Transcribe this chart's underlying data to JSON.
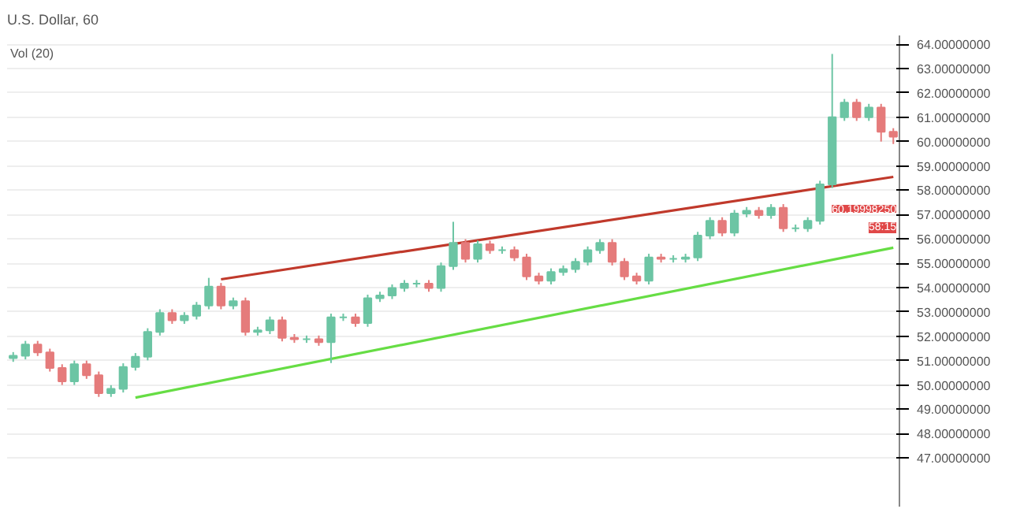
{
  "chart_data": {
    "type": "candlestick",
    "title": "U.S. Dollar, 60",
    "categories": [
      null,
      null,
      null,
      null,
      null,
      null,
      null,
      null,
      null,
      null,
      null,
      null,
      null,
      null,
      null,
      null,
      null,
      null,
      null,
      null,
      null,
      null,
      null,
      null,
      null,
      null,
      null,
      null,
      null,
      null,
      null,
      null,
      null,
      null,
      null,
      null,
      null,
      null,
      null,
      null,
      null,
      null,
      null,
      null,
      null,
      null,
      null,
      null,
      null,
      null,
      null,
      null,
      null,
      null,
      null,
      null,
      null,
      null,
      null,
      null,
      null,
      null,
      null,
      null,
      null,
      null,
      null,
      null,
      null,
      null,
      null,
      null,
      null
    ],
    "ohlc": [
      [
        51.1,
        51.35,
        50.95,
        51.2
      ],
      [
        51.2,
        51.81,
        51.05,
        51.66
      ],
      [
        51.66,
        51.81,
        51.19,
        51.34
      ],
      [
        51.34,
        51.49,
        50.55,
        50.7
      ],
      [
        50.7,
        50.85,
        50.0,
        50.15
      ],
      [
        50.15,
        51.0,
        50.0,
        50.85
      ],
      [
        50.85,
        51.0,
        50.25,
        50.4
      ],
      [
        50.4,
        50.55,
        49.51,
        49.66
      ],
      [
        49.66,
        49.99,
        49.51,
        49.84
      ],
      [
        49.84,
        50.89,
        49.69,
        50.74
      ],
      [
        50.74,
        51.31,
        50.59,
        51.16
      ],
      [
        51.16,
        52.33,
        51.01,
        52.18
      ],
      [
        52.18,
        53.11,
        52.03,
        52.96
      ],
      [
        52.96,
        53.11,
        52.51,
        52.66
      ],
      [
        52.66,
        52.99,
        52.51,
        52.84
      ],
      [
        52.84,
        53.41,
        52.69,
        53.26
      ],
      [
        53.26,
        54.4,
        53.11,
        54.04
      ],
      [
        54.04,
        54.19,
        53.11,
        53.26
      ],
      [
        53.26,
        53.59,
        53.11,
        53.44
      ],
      [
        53.44,
        53.59,
        52.03,
        52.18
      ],
      [
        52.18,
        52.39,
        52.03,
        52.24
      ],
      [
        52.24,
        52.81,
        52.09,
        52.66
      ],
      [
        52.66,
        52.81,
        51.79,
        51.94
      ],
      [
        51.94,
        52.09,
        51.73,
        51.88
      ],
      [
        51.88,
        52.03,
        51.73,
        51.88
      ],
      [
        51.88,
        52.03,
        51.61,
        51.76
      ],
      [
        51.76,
        52.93,
        50.9,
        52.78
      ],
      [
        52.78,
        52.93,
        52.63,
        52.78
      ],
      [
        52.78,
        52.93,
        52.39,
        52.54
      ],
      [
        52.54,
        53.71,
        52.39,
        53.56
      ],
      [
        53.56,
        53.83,
        53.41,
        53.68
      ],
      [
        53.68,
        54.13,
        53.53,
        53.98
      ],
      [
        53.98,
        54.31,
        53.83,
        54.16
      ],
      [
        54.16,
        54.31,
        54.01,
        54.16
      ],
      [
        54.16,
        54.31,
        53.83,
        53.98
      ],
      [
        53.98,
        55.03,
        53.83,
        54.88
      ],
      [
        54.88,
        56.7,
        54.73,
        55.84
      ],
      [
        55.84,
        55.99,
        55.03,
        55.18
      ],
      [
        55.18,
        55.93,
        55.03,
        55.78
      ],
      [
        55.78,
        55.93,
        55.39,
        55.54
      ],
      [
        55.54,
        55.69,
        55.39,
        55.54
      ],
      [
        55.54,
        55.69,
        55.09,
        55.24
      ],
      [
        55.24,
        55.39,
        54.31,
        54.46
      ],
      [
        54.46,
        54.61,
        54.13,
        54.28
      ],
      [
        54.28,
        54.79,
        54.13,
        54.64
      ],
      [
        54.64,
        54.91,
        54.49,
        54.76
      ],
      [
        54.76,
        55.21,
        54.61,
        55.06
      ],
      [
        55.06,
        55.69,
        54.91,
        55.54
      ],
      [
        55.54,
        55.99,
        55.39,
        55.84
      ],
      [
        55.84,
        55.99,
        54.91,
        55.06
      ],
      [
        55.06,
        55.21,
        54.31,
        54.46
      ],
      [
        54.46,
        54.61,
        54.13,
        54.28
      ],
      [
        54.28,
        55.39,
        54.13,
        55.24
      ],
      [
        55.24,
        55.39,
        55.03,
        55.18
      ],
      [
        55.18,
        55.33,
        55.03,
        55.18
      ],
      [
        55.18,
        55.39,
        55.03,
        55.24
      ],
      [
        55.24,
        56.29,
        55.09,
        56.14
      ],
      [
        56.14,
        56.89,
        55.99,
        56.74
      ],
      [
        56.74,
        56.89,
        56.11,
        56.26
      ],
      [
        56.26,
        57.19,
        56.11,
        57.04
      ],
      [
        57.04,
        57.31,
        56.89,
        57.16
      ],
      [
        57.16,
        57.31,
        56.83,
        56.98
      ],
      [
        56.98,
        57.43,
        56.83,
        57.28
      ],
      [
        57.28,
        57.43,
        56.29,
        56.44
      ],
      [
        56.44,
        56.59,
        56.29,
        56.44
      ],
      [
        56.44,
        56.89,
        56.29,
        56.74
      ],
      [
        56.74,
        58.39,
        56.59,
        58.24
      ],
      [
        58.24,
        63.6,
        58.09,
        61.0
      ],
      [
        61.0,
        61.75,
        60.85,
        61.6
      ],
      [
        61.6,
        61.75,
        60.85,
        61.0
      ],
      [
        61.0,
        61.55,
        60.85,
        61.4
      ],
      [
        61.4,
        61.55,
        60.0,
        60.4
      ],
      [
        60.4,
        60.55,
        59.9,
        60.2
      ]
    ],
    "colors": [
      "#6cc5a4",
      "#6cc5a4",
      "#e57b7b",
      "#e57b7b",
      "#e57b7b",
      "#6cc5a4",
      "#e57b7b",
      "#e57b7b",
      "#6cc5a4",
      "#6cc5a4",
      "#6cc5a4",
      "#6cc5a4",
      "#6cc5a4",
      "#e57b7b",
      "#6cc5a4",
      "#6cc5a4",
      "#6cc5a4",
      "#e57b7b",
      "#6cc5a4",
      "#e57b7b",
      "#6cc5a4",
      "#6cc5a4",
      "#e57b7b",
      "#e57b7b",
      "#6cc5a4",
      "#e57b7b",
      "#6cc5a4",
      "#6cc5a4",
      "#e57b7b",
      "#6cc5a4",
      "#6cc5a4",
      "#6cc5a4",
      "#6cc5a4",
      "#6cc5a4",
      "#e57b7b",
      "#6cc5a4",
      "#6cc5a4",
      "#e57b7b",
      "#6cc5a4",
      "#e57b7b",
      "#6cc5a4",
      "#e57b7b",
      "#e57b7b",
      "#e57b7b",
      "#6cc5a4",
      "#6cc5a4",
      "#6cc5a4",
      "#6cc5a4",
      "#6cc5a4",
      "#e57b7b",
      "#e57b7b",
      "#e57b7b",
      "#6cc5a4",
      "#e57b7b",
      "#6cc5a4",
      "#6cc5a4",
      "#6cc5a4",
      "#6cc5a4",
      "#e57b7b",
      "#6cc5a4",
      "#6cc5a4",
      "#e57b7b",
      "#6cc5a4",
      "#e57b7b",
      "#6cc5a4",
      "#6cc5a4",
      "#6cc5a4",
      "#6cc5a4",
      "#6cc5a4",
      "#e57b7b",
      "#6cc5a4",
      "#e57b7b",
      "#e57b7b"
    ],
    "series": [
      {
        "type": "line",
        "color": "#c0392b",
        "values": [
          null,
          null,
          null,
          null,
          null,
          null,
          null,
          null,
          null,
          null,
          null,
          null,
          null,
          null,
          null,
          null,
          null,
          54.34,
          null,
          null,
          null,
          null,
          null,
          null,
          null,
          null,
          null,
          null,
          null,
          null,
          null,
          null,
          null,
          null,
          null,
          null,
          null,
          null,
          null,
          null,
          null,
          null,
          null,
          null,
          null,
          null,
          null,
          null,
          null,
          null,
          null,
          null,
          null,
          null,
          null,
          null,
          null,
          null,
          null,
          null,
          null,
          null,
          null,
          null,
          null,
          null,
          null,
          null,
          null,
          null,
          null,
          null,
          58.55
        ]
      },
      {
        "type": "line",
        "color": "#66dd44",
        "values": [
          null,
          null,
          null,
          null,
          null,
          null,
          null,
          null,
          null,
          null,
          49.48,
          null,
          null,
          null,
          null,
          null,
          null,
          null,
          null,
          null,
          null,
          null,
          null,
          null,
          null,
          null,
          null,
          null,
          null,
          null,
          null,
          null,
          null,
          null,
          null,
          null,
          null,
          null,
          null,
          null,
          null,
          null,
          null,
          null,
          null,
          null,
          null,
          null,
          null,
          null,
          null,
          null,
          null,
          null,
          null,
          null,
          null,
          null,
          null,
          null,
          null,
          null,
          null,
          null,
          null,
          null,
          null,
          null,
          null,
          null,
          null,
          null,
          55.64
        ]
      }
    ],
    "ylim": [
      45,
      64.36
    ],
    "yticks": [
      {
        "value": 47,
        "label": "47.00000000"
      },
      {
        "value": 48,
        "label": "48.00000000"
      },
      {
        "value": 49,
        "label": "49.00000000"
      },
      {
        "value": 50,
        "label": "50.00000000"
      },
      {
        "value": 51,
        "label": "51.00000000"
      },
      {
        "value": 52,
        "label": "52.00000000"
      },
      {
        "value": 53,
        "label": "53.00000000"
      },
      {
        "value": 54,
        "label": "54.00000000"
      },
      {
        "value": 55,
        "label": "55.00000000"
      },
      {
        "value": 56,
        "label": "56.00000000"
      },
      {
        "value": 57,
        "label": "57.00000000"
      },
      {
        "value": 58,
        "label": "58.00000000"
      },
      {
        "value": 59,
        "label": "59.00000000"
      },
      {
        "value": 60,
        "label": "60.00000000"
      },
      {
        "value": 61,
        "label": "61.00000000"
      },
      {
        "value": 62,
        "label": "62.00000000"
      },
      {
        "value": 63,
        "label": "63.00000000"
      },
      {
        "value": 64,
        "label": "64.00000000"
      }
    ],
    "tick_labels": "y",
    "grid": "y",
    "annotations": [
      "Vol (20)",
      "60.19998250",
      "58:15"
    ]
  }
}
